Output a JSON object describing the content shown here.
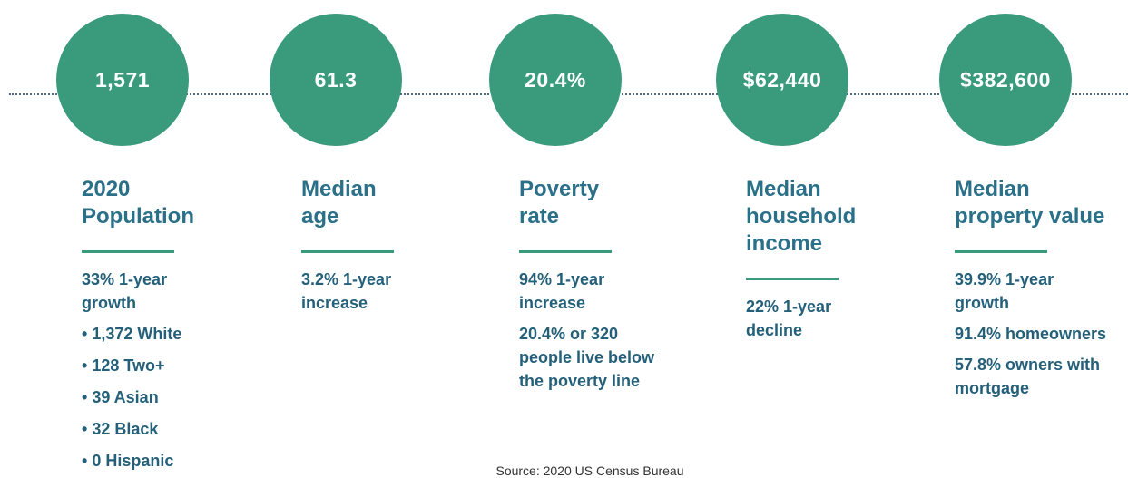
{
  "stats": [
    {
      "value": "1,571",
      "title": [
        "2020",
        "Population"
      ],
      "notes": [
        "33% 1-year growth"
      ],
      "bullets": [
        "1,372 White",
        "128 Two+",
        "39 Asian",
        "32 Black",
        "0 Hispanic"
      ]
    },
    {
      "value": "61.3",
      "title": [
        "Median",
        "age"
      ],
      "notes": [
        "3.2% 1-year increase"
      ]
    },
    {
      "value": "20.4%",
      "title": [
        "Poverty",
        "rate"
      ],
      "notes": [
        "94% 1-year increase",
        "20.4% or 320 people live below the poverty line"
      ]
    },
    {
      "value": "$62,440",
      "title": [
        "Median",
        "household",
        "income"
      ],
      "notes": [
        "22% 1-year decline"
      ]
    },
    {
      "value": "$382,600",
      "title": [
        "Median",
        "property value"
      ],
      "notes": [
        "39.9% 1-year growth",
        "91.4% homeowners",
        "57.8% owners with mortgage"
      ]
    }
  ],
  "source": "Source: 2020 US Census Bureau"
}
